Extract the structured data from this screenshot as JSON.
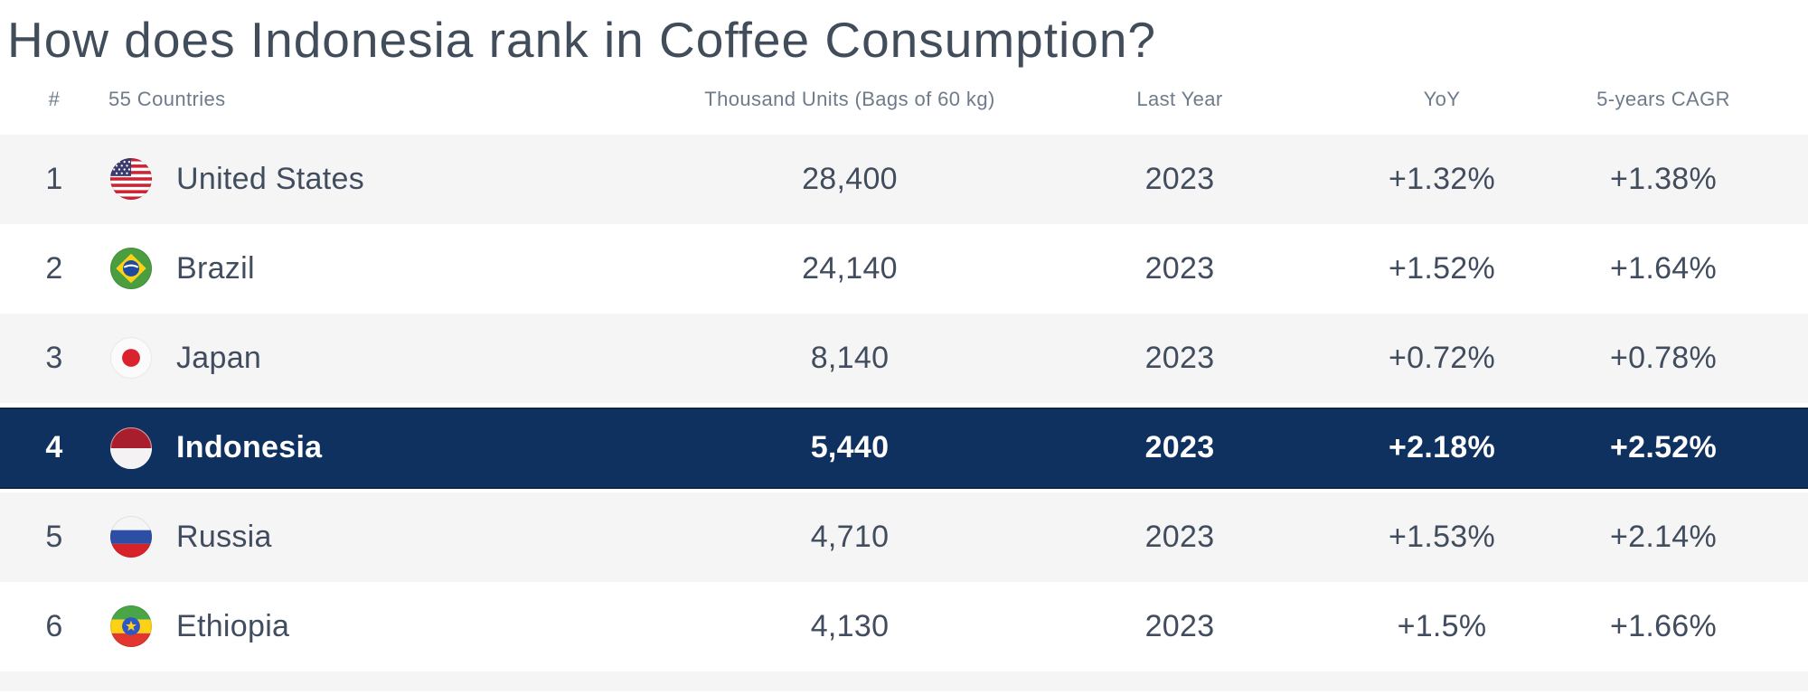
{
  "page": {
    "title": "How does Indonesia rank in Coffee Consumption?"
  },
  "colors": {
    "highlight_row": "#0f3160",
    "highlight_row_edge": "#0a2848",
    "row_stripe": "#f5f5f6",
    "header_text": "#6e7b8a",
    "body_text": "#414d5e",
    "highlight_text": "#ffffff"
  },
  "table": {
    "header": {
      "rank": "#",
      "country": "55 Countries",
      "units": "Thousand Units (Bags of 60 kg)",
      "last_year": "Last Year",
      "yoy": "YoY",
      "cagr": "5-years CAGR"
    },
    "rows": [
      {
        "rank": "1",
        "country": "United States",
        "flag": "us-flag-icon",
        "units": "28,400",
        "last_year": "2023",
        "yoy": "+1.32%",
        "cagr": "+1.38%",
        "highlighted": false
      },
      {
        "rank": "2",
        "country": "Brazil",
        "flag": "brazil-flag-icon",
        "units": "24,140",
        "last_year": "2023",
        "yoy": "+1.52%",
        "cagr": "+1.64%",
        "highlighted": false
      },
      {
        "rank": "3",
        "country": "Japan",
        "flag": "japan-flag-icon",
        "units": "8,140",
        "last_year": "2023",
        "yoy": "+0.72%",
        "cagr": "+0.78%",
        "highlighted": false
      },
      {
        "rank": "4",
        "country": "Indonesia",
        "flag": "indonesia-flag-icon",
        "units": "5,440",
        "last_year": "2023",
        "yoy": "+2.18%",
        "cagr": "+2.52%",
        "highlighted": true
      },
      {
        "rank": "5",
        "country": "Russia",
        "flag": "russia-flag-icon",
        "units": "4,710",
        "last_year": "2023",
        "yoy": "+1.53%",
        "cagr": "+2.14%",
        "highlighted": false
      },
      {
        "rank": "6",
        "country": "Ethiopia",
        "flag": "ethiopia-flag-icon",
        "units": "4,130",
        "last_year": "2023",
        "yoy": "+1.5%",
        "cagr": "+1.66%",
        "highlighted": false
      }
    ]
  },
  "chart_data": {
    "type": "table",
    "title": "How does Indonesia rank in Coffee Consumption?",
    "subtitle_note": "55 Countries",
    "columns": [
      "#",
      "55 Countries",
      "Thousand Units (Bags of 60 kg)",
      "Last Year",
      "YoY",
      "5-years CAGR"
    ],
    "rows": [
      [
        1,
        "United States",
        28400,
        2023,
        "+1.32%",
        "+1.38%"
      ],
      [
        2,
        "Brazil",
        24140,
        2023,
        "+1.52%",
        "+1.64%"
      ],
      [
        3,
        "Japan",
        8140,
        2023,
        "+0.72%",
        "+0.78%"
      ],
      [
        4,
        "Indonesia",
        5440,
        2023,
        "+2.18%",
        "+2.52%"
      ],
      [
        5,
        "Russia",
        4710,
        2023,
        "+1.53%",
        "+2.14%"
      ],
      [
        6,
        "Ethiopia",
        4130,
        2023,
        "+1.5%",
        "+1.66%"
      ]
    ],
    "highlighted_row_index": 3,
    "highlighted_country": "Indonesia",
    "layout": {
      "striped_rows": true,
      "highlight_color": "#0f3160",
      "stripe_color": "#f5f5f6"
    }
  }
}
